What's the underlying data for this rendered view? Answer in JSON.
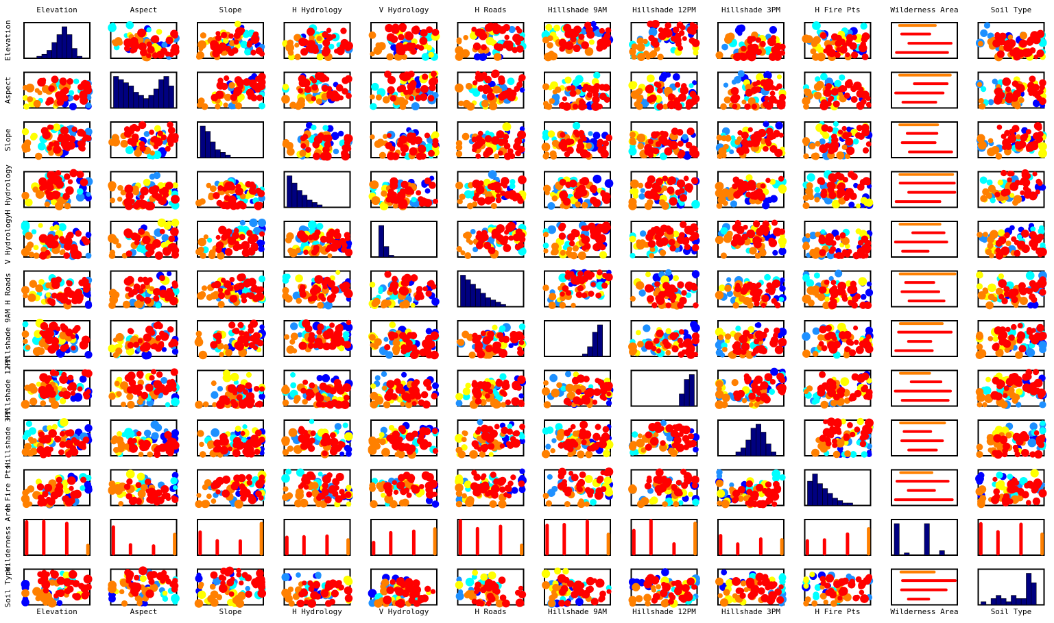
{
  "chart_data": {
    "type": "scatter",
    "title": "",
    "features": [
      "Elevation",
      "Aspect",
      "Slope",
      "H Hydrology",
      "V Hydrology",
      "H Roads",
      "Hillshade 9AM",
      "Hillshade 12PM",
      "Hillshade 3PM",
      "H Fire Pts",
      "Wilderness Area",
      "Soil Type"
    ],
    "column_labels_top": [
      "Elevation",
      "Aspect",
      "Slope",
      "H Hydrology",
      "V Hydrology",
      "H Roads",
      "Hillshade 9AM",
      "Hillshade 12PM",
      "Hillshade 3PM",
      "H Fire Pts",
      "Wilderness Area",
      "Soil Type"
    ],
    "column_labels_bottom": [
      "Elevation",
      "Aspect",
      "Slope",
      "H Hydrology",
      "V Hydrology",
      "H Roads",
      "Hillshade 9AM",
      "Hillshade 12PM",
      "Hillshade 3PM",
      "H Fire Pts",
      "Wilderness Area",
      "Soil Type"
    ],
    "row_labels": [
      "Elevation",
      "Aspect",
      "Slope",
      "H Hydrology",
      "V Hydrology",
      "H Roads",
      "Hillshade 9AM",
      "Hillshade 12PM",
      "Hillshade 3PM",
      "H Fire Pts",
      "Wilderness Area",
      "Soil Type"
    ],
    "diagonal": "histogram",
    "off_diagonal": "scatter",
    "histogram_color": "#000080",
    "class_colors": [
      "#0000ff",
      "#1e90ff",
      "#00ffff",
      "#ffff00",
      "#ff8000",
      "#ff0000"
    ],
    "histograms": [
      [
        0,
        0,
        1,
        2,
        4,
        8,
        12,
        16,
        12,
        5,
        1,
        0
      ],
      [
        10,
        9,
        8,
        7,
        5,
        4,
        3,
        4,
        6,
        9,
        10,
        7
      ],
      [
        12,
        10,
        6,
        3,
        2,
        1,
        0,
        0,
        0,
        0,
        0,
        0
      ],
      [
        13,
        10,
        7,
        5,
        3,
        2,
        1,
        0,
        0,
        0,
        0,
        0
      ],
      [
        0,
        18,
        6,
        1,
        0,
        0,
        0,
        0,
        0,
        0,
        0,
        0
      ],
      [
        14,
        12,
        10,
        8,
        6,
        4,
        3,
        2,
        1,
        0,
        0,
        0
      ],
      [
        0,
        0,
        0,
        0,
        0,
        0,
        0,
        1,
        4,
        10,
        13,
        0
      ],
      [
        0,
        0,
        0,
        0,
        0,
        0,
        0,
        0,
        0,
        5,
        11,
        13
      ],
      [
        0,
        0,
        0,
        1,
        2,
        4,
        7,
        8,
        6,
        3,
        1,
        0
      ],
      [
        10,
        13,
        9,
        7,
        5,
        3,
        2,
        1,
        1,
        0,
        0,
        0
      ],
      [
        14,
        0,
        1,
        0,
        0,
        0,
        14,
        0,
        0,
        2,
        0,
        0
      ],
      [
        1,
        0,
        2,
        3,
        2,
        1,
        3,
        2,
        2,
        10,
        7,
        0
      ]
    ]
  }
}
